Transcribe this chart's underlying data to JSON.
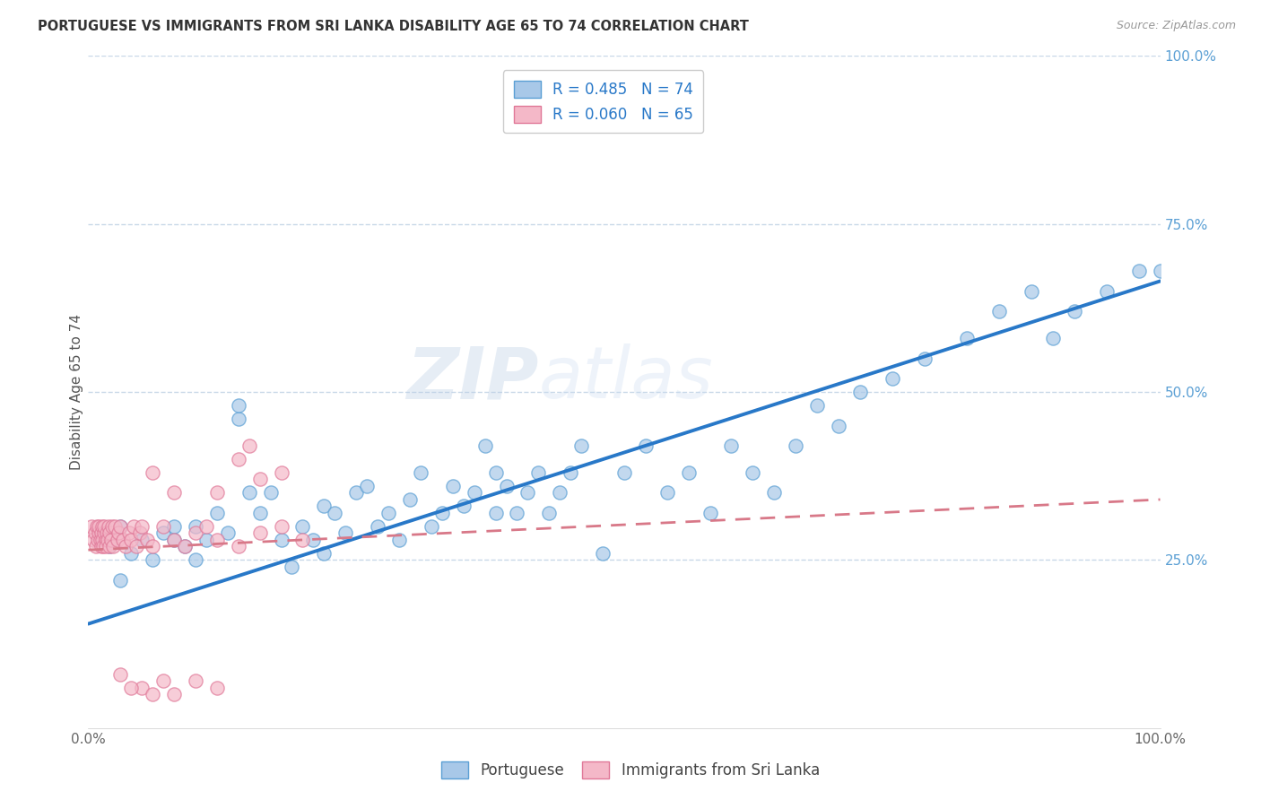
{
  "title": "PORTUGUESE VS IMMIGRANTS FROM SRI LANKA DISABILITY AGE 65 TO 74 CORRELATION CHART",
  "source": "Source: ZipAtlas.com",
  "ylabel": "Disability Age 65 to 74",
  "xlim": [
    0,
    1.0
  ],
  "ylim": [
    0,
    1.0
  ],
  "watermark_zip": "ZIP",
  "watermark_atlas": "atlas",
  "legend_label1": "R = 0.485   N = 74",
  "legend_label2": "R = 0.060   N = 65",
  "bottom_label1": "Portuguese",
  "bottom_label2": "Immigrants from Sri Lanka",
  "color_blue_fill": "#a8c8e8",
  "color_blue_edge": "#5a9fd4",
  "color_pink_fill": "#f4b8c8",
  "color_pink_edge": "#e07898",
  "trendline_blue": "#2878c8",
  "trendline_pink": "#d87888",
  "right_axis_color": "#5a9fd4",
  "grid_color": "#c8d8e8",
  "blue_x": [
    0.02,
    0.03,
    0.03,
    0.04,
    0.05,
    0.06,
    0.07,
    0.08,
    0.08,
    0.09,
    0.1,
    0.1,
    0.11,
    0.12,
    0.13,
    0.14,
    0.14,
    0.15,
    0.16,
    0.17,
    0.18,
    0.19,
    0.2,
    0.21,
    0.22,
    0.22,
    0.23,
    0.24,
    0.25,
    0.26,
    0.27,
    0.28,
    0.29,
    0.3,
    0.31,
    0.32,
    0.33,
    0.34,
    0.35,
    0.36,
    0.37,
    0.38,
    0.38,
    0.39,
    0.4,
    0.41,
    0.42,
    0.43,
    0.44,
    0.45,
    0.46,
    0.48,
    0.5,
    0.52,
    0.54,
    0.56,
    0.58,
    0.6,
    0.62,
    0.64,
    0.66,
    0.68,
    0.7,
    0.72,
    0.75,
    0.78,
    0.82,
    0.85,
    0.88,
    0.9,
    0.92,
    0.95,
    0.98,
    1.0
  ],
  "blue_y": [
    0.27,
    0.22,
    0.3,
    0.26,
    0.28,
    0.25,
    0.29,
    0.28,
    0.3,
    0.27,
    0.3,
    0.25,
    0.28,
    0.32,
    0.29,
    0.46,
    0.48,
    0.35,
    0.32,
    0.35,
    0.28,
    0.24,
    0.3,
    0.28,
    0.26,
    0.33,
    0.32,
    0.29,
    0.35,
    0.36,
    0.3,
    0.32,
    0.28,
    0.34,
    0.38,
    0.3,
    0.32,
    0.36,
    0.33,
    0.35,
    0.42,
    0.32,
    0.38,
    0.36,
    0.32,
    0.35,
    0.38,
    0.32,
    0.35,
    0.38,
    0.42,
    0.26,
    0.38,
    0.42,
    0.35,
    0.38,
    0.32,
    0.42,
    0.38,
    0.35,
    0.42,
    0.48,
    0.45,
    0.5,
    0.52,
    0.55,
    0.58,
    0.62,
    0.65,
    0.58,
    0.62,
    0.65,
    0.68,
    0.68
  ],
  "pink_x": [
    0.003,
    0.005,
    0.006,
    0.007,
    0.008,
    0.009,
    0.01,
    0.01,
    0.011,
    0.012,
    0.012,
    0.013,
    0.013,
    0.014,
    0.015,
    0.015,
    0.016,
    0.016,
    0.017,
    0.018,
    0.019,
    0.02,
    0.02,
    0.021,
    0.022,
    0.023,
    0.025,
    0.027,
    0.028,
    0.03,
    0.032,
    0.035,
    0.038,
    0.04,
    0.042,
    0.045,
    0.048,
    0.05,
    0.055,
    0.06,
    0.07,
    0.08,
    0.09,
    0.1,
    0.11,
    0.12,
    0.14,
    0.16,
    0.18,
    0.2,
    0.15,
    0.18,
    0.12,
    0.14,
    0.16,
    0.05,
    0.06,
    0.07,
    0.03,
    0.04,
    0.08,
    0.1,
    0.12,
    0.06,
    0.08
  ],
  "pink_y": [
    0.3,
    0.28,
    0.29,
    0.27,
    0.3,
    0.28,
    0.29,
    0.3,
    0.28,
    0.27,
    0.29,
    0.3,
    0.28,
    0.27,
    0.29,
    0.3,
    0.28,
    0.27,
    0.29,
    0.28,
    0.3,
    0.27,
    0.29,
    0.28,
    0.3,
    0.27,
    0.3,
    0.28,
    0.29,
    0.3,
    0.28,
    0.27,
    0.29,
    0.28,
    0.3,
    0.27,
    0.29,
    0.3,
    0.28,
    0.27,
    0.3,
    0.28,
    0.27,
    0.29,
    0.3,
    0.28,
    0.27,
    0.29,
    0.3,
    0.28,
    0.42,
    0.38,
    0.35,
    0.4,
    0.37,
    0.06,
    0.05,
    0.07,
    0.08,
    0.06,
    0.05,
    0.07,
    0.06,
    0.38,
    0.35
  ],
  "blue_trend_x0": 0.0,
  "blue_trend_y0": 0.155,
  "blue_trend_x1": 1.0,
  "blue_trend_y1": 0.665,
  "pink_trend_x0": 0.0,
  "pink_trend_y0": 0.265,
  "pink_trend_x1": 1.0,
  "pink_trend_y1": 0.34
}
